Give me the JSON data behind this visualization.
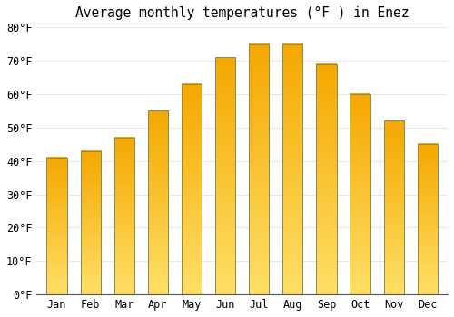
{
  "title": "Average monthly temperatures (°F ) in Enez",
  "months": [
    "Jan",
    "Feb",
    "Mar",
    "Apr",
    "May",
    "Jun",
    "Jul",
    "Aug",
    "Sep",
    "Oct",
    "Nov",
    "Dec"
  ],
  "values": [
    41,
    43,
    47,
    55,
    63,
    71,
    75,
    75,
    69,
    60,
    52,
    45
  ],
  "bar_color_top": "#F5A800",
  "bar_color_bottom": "#FFE066",
  "bar_edge_color": "#888855",
  "ylim": [
    0,
    80
  ],
  "yticks": [
    0,
    10,
    20,
    30,
    40,
    50,
    60,
    70,
    80
  ],
  "ytick_labels": [
    "0°F",
    "10°F",
    "20°F",
    "30°F",
    "40°F",
    "50°F",
    "60°F",
    "70°F",
    "80°F"
  ],
  "background_color": "#FFFFFF",
  "grid_color": "#E8E8E8",
  "title_fontsize": 10.5,
  "tick_fontsize": 8.5,
  "bar_width": 0.6
}
